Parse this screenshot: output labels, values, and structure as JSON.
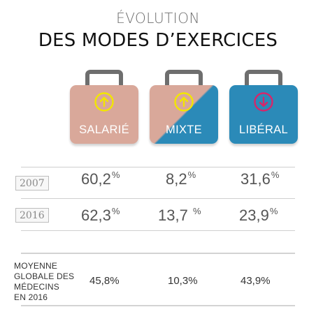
{
  "header": {
    "title_small": "ÉVOLUTION",
    "title_big": "DES MODES D’EXERCICES"
  },
  "colors": {
    "salarie": "#d9a89a",
    "mixte_top": "#d9a89a",
    "mixte_bottom": "#2b8ab8",
    "liberal": "#2b8ab8",
    "arrow_up": "#f2e600",
    "arrow_down": "#d6266a"
  },
  "cases": [
    {
      "label": "SALARIÉ",
      "icon": "arrow-up-circle-icon"
    },
    {
      "label": "MIXTE",
      "icon": "arrow-up-circle-icon"
    },
    {
      "label": "LIBÉRAL",
      "icon": "arrow-down-circle-icon"
    }
  ],
  "rows": [
    {
      "year": "2007",
      "values": [
        "60,2",
        "8,2",
        "31,6"
      ],
      "unit": "%"
    },
    {
      "year": "2016",
      "values": [
        "62,3",
        "13,7",
        "23,9"
      ],
      "unit": "%"
    }
  ],
  "average": {
    "label_lines": [
      "MOYENNE",
      "GLOBALE DES",
      "MÉDECINS",
      "EN 2016"
    ],
    "values": [
      "45,8%",
      "10,3%",
      "43,9%"
    ]
  },
  "chart_data": {
    "type": "table",
    "title": "ÉVOLUTION DES MODES D’EXERCICES",
    "categories": [
      "SALARIÉ",
      "MIXTE",
      "LIBÉRAL"
    ],
    "series": [
      {
        "name": "2007",
        "values": [
          60.2,
          8.2,
          31.6
        ]
      },
      {
        "name": "2016",
        "values": [
          62.3,
          13.7,
          23.9
        ]
      },
      {
        "name": "MOYENNE GLOBALE DES MÉDECINS EN 2016",
        "values": [
          45.8,
          10.3,
          43.9
        ]
      }
    ],
    "unit": "%",
    "trend": [
      "up",
      "up",
      "down"
    ]
  }
}
